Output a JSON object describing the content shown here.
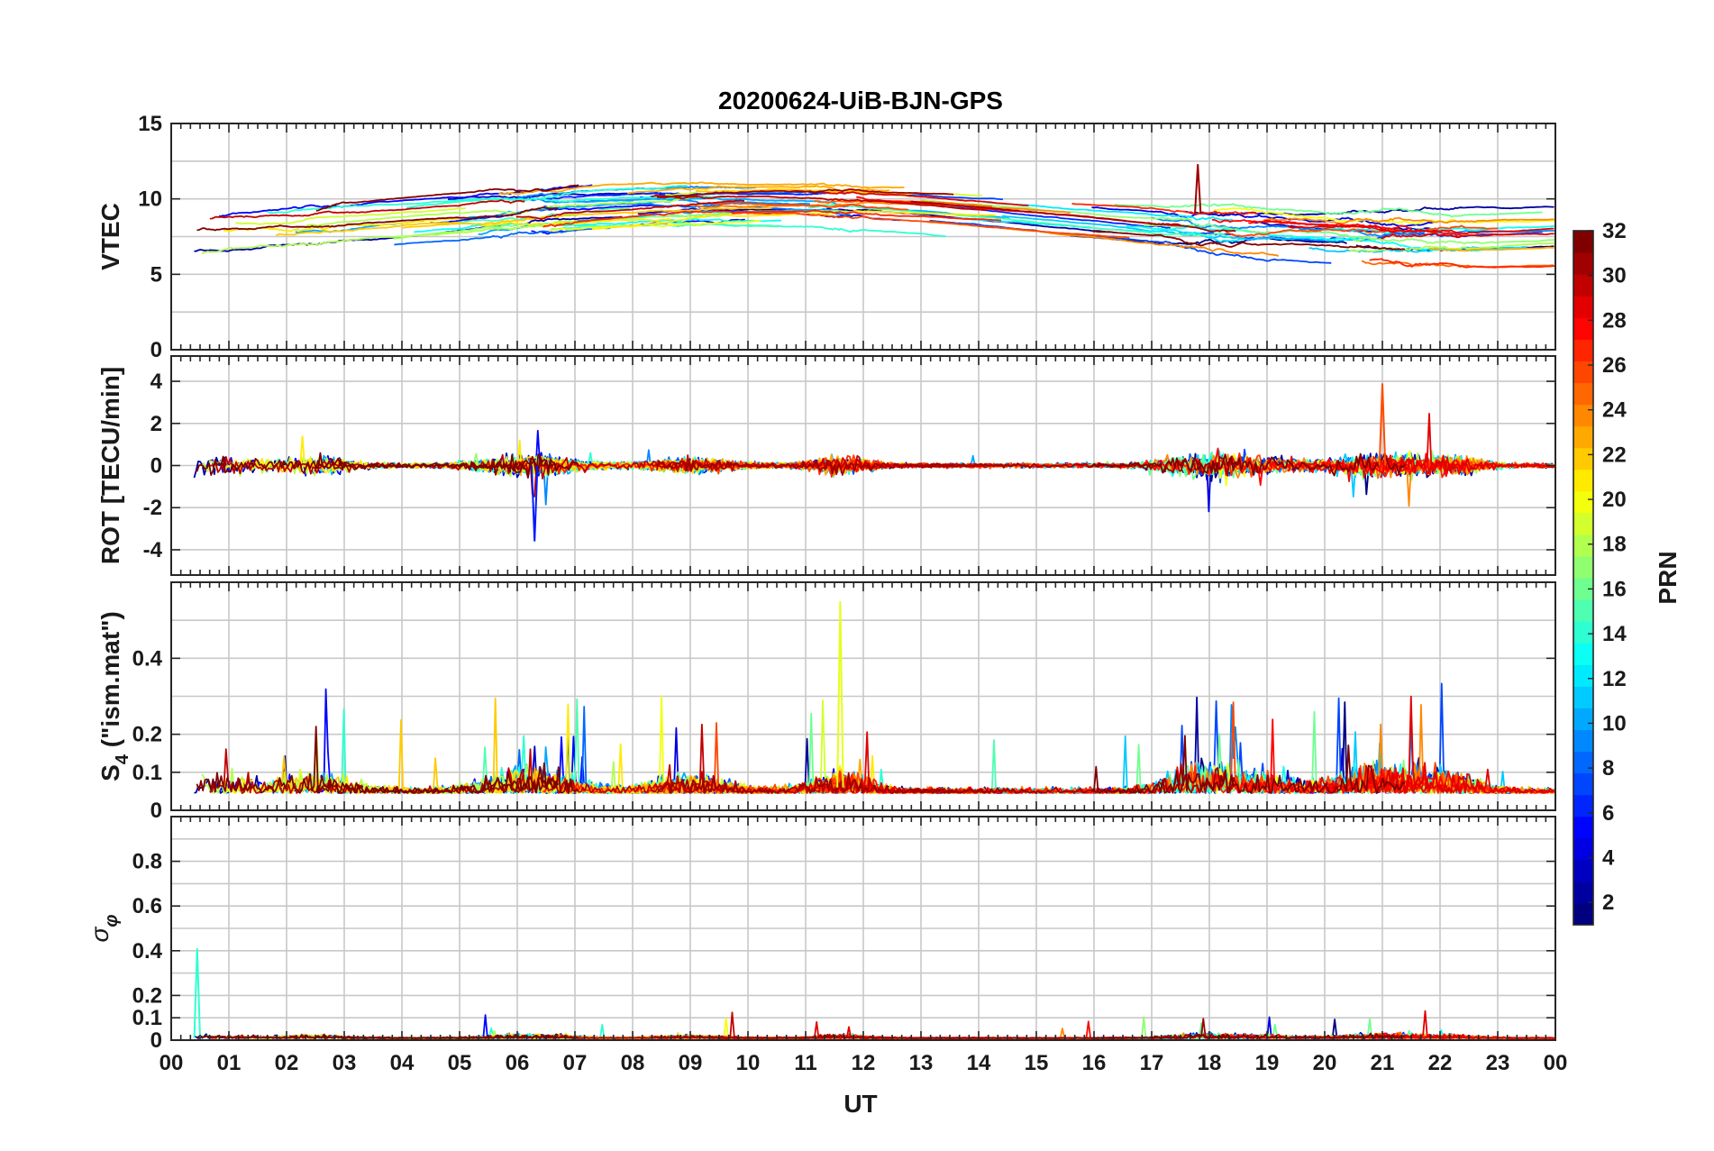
{
  "chart_data": {
    "type": "line",
    "title": "20200624-UiB-BJN-GPS",
    "xlabel": "UT",
    "x_tick_labels": [
      "00",
      "01",
      "02",
      "03",
      "04",
      "05",
      "06",
      "07",
      "08",
      "09",
      "10",
      "11",
      "12",
      "13",
      "14",
      "15",
      "16",
      "17",
      "18",
      "19",
      "20",
      "21",
      "22",
      "23",
      "00"
    ],
    "x_range_hours": [
      0,
      24
    ],
    "panels": [
      {
        "id": "vtec",
        "ylabel": "VTEC",
        "ylim": [
          0,
          15
        ],
        "yticks": [
          0,
          5,
          10,
          15
        ],
        "ytick_labels": [
          "0",
          "5",
          "10",
          "15"
        ],
        "description_values": {
          "typical_range": [
            5,
            12
          ],
          "peak": {
            "x_hour": 17.8,
            "y": 12.3
          }
        }
      },
      {
        "id": "rot",
        "ylabel": "ROT [TECU/min]",
        "ylim": [
          -5.2,
          5.2
        ],
        "yticks": [
          -4,
          -2,
          0,
          2,
          4
        ],
        "ytick_labels": [
          "-4",
          "-2",
          "0",
          "2",
          "4"
        ],
        "description_values": {
          "max_spike": {
            "x_hour": 21.0,
            "y": 3.9
          },
          "min_spike": {
            "x_hour": 6.3,
            "y": -3.6
          }
        }
      },
      {
        "id": "s4",
        "ylabel_main": "S",
        "ylabel_sub": "4",
        "ylabel_suffix": " (\"ism.mat\")",
        "ylim": [
          0,
          0.6
        ],
        "yticks": [
          0,
          0.1,
          0.2,
          0.4
        ],
        "ytick_labels": [
          "0",
          "0.1",
          "0.2",
          "0.4"
        ],
        "description_values": {
          "max_peak": {
            "x_hour": 11.6,
            "y": 0.55
          }
        }
      },
      {
        "id": "sigma_phi",
        "ylabel_main": "σ",
        "ylabel_sub": "φ",
        "ylim": [
          0,
          1.0
        ],
        "yticks": [
          0,
          0.1,
          0.2,
          0.4,
          0.6,
          0.8
        ],
        "ytick_labels": [
          "0",
          "0.1",
          "0.2",
          "0.4",
          "0.6",
          "0.8"
        ],
        "description_values": {
          "max_peak": {
            "x_hour": 0.45,
            "y": 0.41
          }
        }
      }
    ],
    "colorbar": {
      "label": "PRN",
      "range": [
        1,
        32
      ],
      "tick_labels": [
        "2",
        "4",
        "6",
        "8",
        "10",
        "12",
        "14",
        "16",
        "18",
        "20",
        "22",
        "24",
        "26",
        "28",
        "30",
        "32"
      ],
      "colormap": "jet"
    },
    "series_count": 32,
    "series_note": "One line per GPS PRN 1-32, colored by PRN on the jet colormap"
  }
}
